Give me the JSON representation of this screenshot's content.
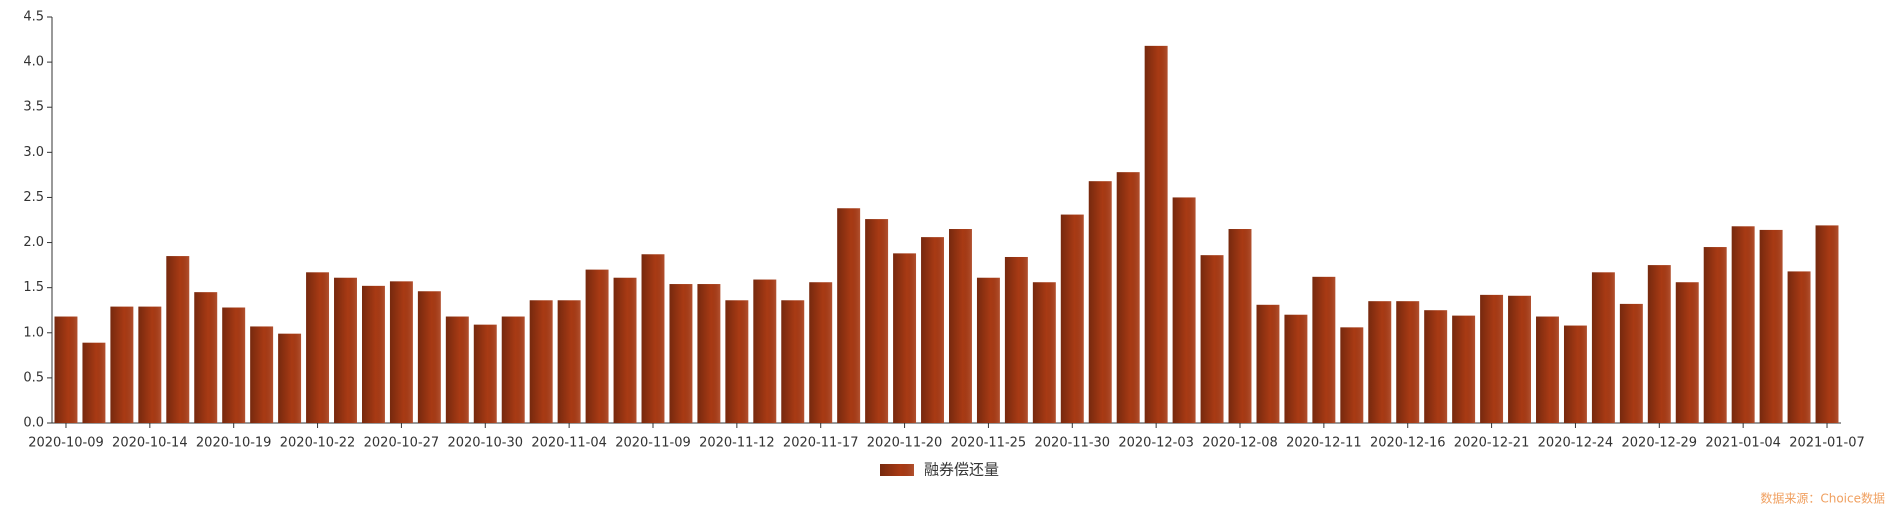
{
  "chart_data": {
    "type": "bar",
    "categories": [
      "2020-10-09",
      null,
      null,
      "2020-10-14",
      null,
      null,
      "2020-10-19",
      null,
      null,
      "2020-10-22",
      null,
      null,
      "2020-10-27",
      null,
      null,
      "2020-10-30",
      null,
      null,
      "2020-11-04",
      null,
      null,
      "2020-11-09",
      null,
      null,
      "2020-11-12",
      null,
      null,
      "2020-11-17",
      null,
      null,
      "2020-11-20",
      null,
      null,
      "2020-11-25",
      null,
      null,
      "2020-11-30",
      null,
      null,
      "2020-12-03",
      null,
      null,
      "2020-12-08",
      null,
      null,
      "2020-12-11",
      null,
      null,
      "2020-12-16",
      null,
      null,
      "2020-12-21",
      null,
      null,
      "2020-12-24",
      null,
      null,
      "2020-12-29",
      null,
      null,
      "2021-01-04",
      null,
      null,
      "2021-01-07"
    ],
    "series": [
      {
        "name": "融券偿还量",
        "color": "#a83a14",
        "values": [
          1.18,
          0.89,
          1.29,
          1.29,
          1.85,
          1.45,
          1.28,
          1.07,
          0.99,
          1.67,
          1.61,
          1.52,
          1.57,
          1.46,
          1.18,
          1.09,
          1.18,
          1.36,
          1.36,
          1.7,
          1.61,
          1.87,
          1.54,
          1.54,
          1.36,
          1.59,
          1.36,
          1.56,
          2.38,
          2.26,
          1.88,
          2.06,
          2.15,
          1.61,
          1.84,
          1.56,
          2.31,
          2.68,
          2.78,
          4.18,
          2.5,
          1.86,
          2.15,
          1.31,
          1.2,
          1.62,
          1.06,
          1.35,
          1.35,
          1.25,
          1.19,
          1.42,
          1.41,
          1.18,
          1.08,
          1.67,
          1.32,
          1.75,
          1.56,
          1.95,
          2.18,
          2.14,
          1.68,
          2.19
        ]
      }
    ],
    "ylim": [
      0,
      4.5
    ],
    "yticks": [
      {
        "value": 0,
        "label": "0.0"
      },
      0.5,
      {
        "value": 1,
        "label": "1.0"
      },
      1.5,
      {
        "value": 2,
        "label": "2.0"
      },
      2.5,
      {
        "value": 3,
        "label": "3.0"
      },
      3.5,
      {
        "value": 4,
        "label": "4.0"
      },
      4.5
    ],
    "legend": "bottom",
    "source": "数据来源：Choice数据"
  }
}
